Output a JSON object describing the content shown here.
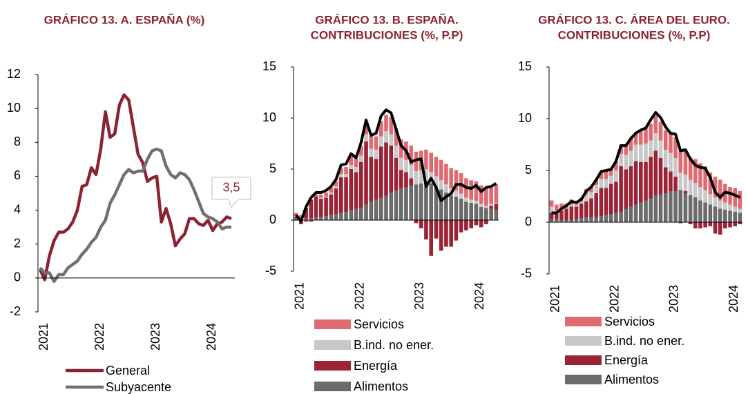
{
  "chart_data": [
    {
      "type": "line",
      "title": [
        "GRÁFICO 13. A.  ESPAÑA (%)"
      ],
      "categories": [
        "2021",
        null,
        null,
        null,
        null,
        null,
        null,
        null,
        null,
        null,
        null,
        null,
        "2022",
        null,
        null,
        null,
        null,
        null,
        null,
        null,
        null,
        null,
        null,
        null,
        "2023",
        null,
        null,
        null,
        null,
        null,
        null,
        null,
        null,
        null,
        null,
        null,
        "2024",
        null,
        null,
        null,
        null,
        null
      ],
      "series": [
        {
          "name": "General",
          "color": "#8b2332",
          "values": [
            0.5,
            -0.1,
            1.3,
            2.2,
            2.7,
            2.7,
            2.9,
            3.3,
            4.0,
            5.4,
            5.5,
            6.5,
            6.1,
            7.6,
            9.8,
            8.3,
            8.5,
            10.2,
            10.8,
            10.5,
            8.9,
            7.3,
            6.8,
            5.7,
            5.9,
            6.0,
            3.3,
            4.1,
            3.2,
            1.9,
            2.3,
            2.6,
            3.5,
            3.5,
            3.2,
            3.1,
            3.4,
            2.8,
            3.2,
            3.3,
            3.6,
            3.5
          ]
        },
        {
          "name": "Subyacente",
          "color": "#707070",
          "values": [
            0.6,
            0.3,
            0.3,
            -0.2,
            0.2,
            0.2,
            0.6,
            0.8,
            1.0,
            1.4,
            1.7,
            2.1,
            2.4,
            3.0,
            3.4,
            4.4,
            4.9,
            5.5,
            6.1,
            6.4,
            6.2,
            6.3,
            6.3,
            7.0,
            7.5,
            7.6,
            7.5,
            6.6,
            6.1,
            5.9,
            6.2,
            6.1,
            5.8,
            5.2,
            4.5,
            3.8,
            3.6,
            3.5,
            3.3,
            2.9,
            3.0,
            3.0
          ]
        }
      ],
      "annotation": "3,5",
      "ylim": [
        -2,
        12
      ],
      "yticks": [
        -2,
        0,
        2,
        4,
        6,
        8,
        10,
        12
      ]
    },
    {
      "type": "stacked_bar",
      "title": [
        "GRÁFICO 13. B.  ESPAÑA.",
        "CONTRIBUCIONES (%, P.P)"
      ],
      "categories": [
        "2021",
        null,
        null,
        null,
        null,
        null,
        null,
        null,
        null,
        null,
        null,
        null,
        "2022",
        null,
        null,
        null,
        null,
        null,
        null,
        null,
        null,
        null,
        null,
        null,
        "2023",
        null,
        null,
        null,
        null,
        null,
        null,
        null,
        null,
        null,
        null,
        null,
        "2024",
        null,
        null,
        null,
        null
      ],
      "series": [
        {
          "name": "Servicios",
          "color": "#e06a72",
          "values": [
            0.3,
            0.2,
            -0.2,
            -0.2,
            0.2,
            0.3,
            0.4,
            0.5,
            0.5,
            0.6,
            0.7,
            0.8,
            0.8,
            1.0,
            1.1,
            1.2,
            1.3,
            1.5,
            1.6,
            1.7,
            1.7,
            1.8,
            1.8,
            1.9,
            1.9,
            1.9,
            1.9,
            1.9,
            1.9,
            2.0,
            2.0,
            2.0,
            2.0,
            2.0,
            1.9,
            1.9,
            1.9,
            1.8,
            1.8,
            1.8,
            1.8
          ]
        },
        {
          "name": "B.ind. no ener.",
          "color": "#c8c8c8",
          "values": [
            0.1,
            0.1,
            0.0,
            0.0,
            0.0,
            0.1,
            0.1,
            0.2,
            0.2,
            0.3,
            0.3,
            0.4,
            0.5,
            0.6,
            0.7,
            0.8,
            0.9,
            1.0,
            1.1,
            1.1,
            1.2,
            1.2,
            1.2,
            1.3,
            1.3,
            1.3,
            1.2,
            1.1,
            1.0,
            0.9,
            0.8,
            0.7,
            0.6,
            0.5,
            0.4,
            0.3,
            0.3,
            0.3,
            0.2,
            0.2,
            0.1
          ]
        },
        {
          "name": "Energía",
          "color": "#9b2335",
          "values": [
            0.1,
            -0.4,
            1.0,
            1.8,
            2.0,
            1.8,
            1.8,
            2.0,
            2.5,
            3.5,
            3.4,
            4.0,
            3.6,
            4.5,
            6.2,
            4.4,
            4.0,
            5.0,
            5.2,
            4.6,
            3.2,
            1.8,
            1.5,
            0.7,
            -0.3,
            -0.8,
            -1.9,
            -3.5,
            -1.8,
            -3.0,
            -2.6,
            -2.6,
            -2.0,
            -1.2,
            -1.0,
            -0.8,
            -0.5,
            -0.7,
            -0.4,
            0.3,
            0.6
          ]
        },
        {
          "name": "Alimentos",
          "color": "#6b6b6b",
          "values": [
            0.2,
            0.2,
            0.2,
            0.2,
            0.3,
            0.3,
            0.4,
            0.5,
            0.6,
            0.7,
            0.8,
            1.0,
            1.1,
            1.2,
            1.5,
            1.8,
            2.0,
            2.2,
            2.4,
            2.7,
            2.9,
            3.1,
            3.2,
            3.4,
            3.5,
            3.6,
            3.8,
            3.6,
            3.3,
            3.0,
            2.7,
            2.4,
            2.3,
            2.1,
            1.8,
            1.7,
            1.6,
            1.3,
            1.2,
            1.1,
            1.0
          ]
        }
      ],
      "line": {
        "color": "#000000",
        "values": [
          0.5,
          -0.1,
          1.3,
          2.2,
          2.7,
          2.7,
          2.9,
          3.3,
          4.0,
          5.4,
          5.5,
          6.5,
          6.1,
          7.6,
          9.8,
          8.3,
          8.5,
          10.2,
          10.8,
          10.5,
          8.9,
          7.3,
          6.8,
          5.7,
          5.9,
          6.0,
          3.3,
          4.1,
          3.2,
          1.9,
          2.3,
          2.6,
          3.5,
          3.5,
          3.2,
          3.1,
          3.4,
          2.8,
          3.2,
          3.3,
          3.6
        ]
      },
      "ylim": [
        -5,
        15
      ],
      "yticks": [
        -5,
        0,
        5,
        10,
        15
      ]
    },
    {
      "type": "stacked_bar",
      "title": [
        "GRÁFICO 13. C. ÁREA DEL EURO.",
        "CONTRIBUCIONES (%, P.P)"
      ],
      "categories": [
        "2021",
        null,
        null,
        null,
        null,
        null,
        null,
        null,
        null,
        null,
        null,
        null,
        "2022",
        null,
        null,
        null,
        null,
        null,
        null,
        null,
        null,
        null,
        null,
        null,
        "2023",
        null,
        null,
        null,
        null,
        null,
        null,
        null,
        null,
        null,
        null,
        null,
        "2024",
        null,
        null
      ],
      "series": [
        {
          "name": "Servicios",
          "color": "#e06a72",
          "values": [
            0.6,
            0.6,
            0.6,
            0.4,
            0.5,
            0.3,
            0.4,
            0.5,
            0.5,
            0.5,
            0.7,
            0.8,
            0.6,
            0.9,
            0.9,
            1.0,
            1.2,
            1.2,
            1.4,
            1.5,
            1.6,
            1.7,
            1.8,
            1.9,
            1.9,
            2.0,
            2.1,
            2.4,
            2.2,
            2.3,
            2.3,
            2.3,
            2.1,
            2.0,
            2.0,
            1.8,
            1.7,
            1.8,
            1.7
          ]
        },
        {
          "name": "B.ind. no ener.",
          "color": "#c8c8c8",
          "values": [
            0.6,
            0.3,
            0.1,
            0.1,
            0.2,
            0.2,
            0.2,
            0.7,
            0.6,
            0.8,
            0.9,
            0.9,
            0.8,
            1.1,
            1.2,
            1.4,
            1.5,
            1.6,
            1.7,
            1.8,
            1.6,
            1.7,
            1.7,
            1.7,
            1.8,
            1.8,
            1.7,
            1.6,
            1.5,
            1.4,
            1.3,
            1.2,
            1.0,
            0.9,
            0.8,
            0.7,
            0.6,
            0.5,
            0.4
          ]
        },
        {
          "name": "Energía",
          "color": "#9b2335",
          "values": [
            0.6,
            0.5,
            0.9,
            1.1,
            1.3,
            1.2,
            1.4,
            1.5,
            1.8,
            2.3,
            2.7,
            2.6,
            2.9,
            3.0,
            4.4,
            3.8,
            3.9,
            4.2,
            3.9,
            3.7,
            4.0,
            4.3,
            3.5,
            2.5,
            1.9,
            1.4,
            -0.1,
            0.2,
            -0.2,
            -0.6,
            -0.6,
            -0.5,
            -0.4,
            -1.1,
            -1.2,
            -0.6,
            -0.5,
            -0.4,
            -0.2
          ]
        },
        {
          "name": "Alimentos",
          "color": "#6b6b6b",
          "values": [
            0.3,
            0.3,
            0.2,
            0.2,
            0.2,
            0.3,
            0.4,
            0.5,
            0.5,
            0.5,
            0.6,
            0.7,
            0.8,
            0.9,
            1.0,
            1.3,
            1.5,
            1.7,
            1.9,
            2.1,
            2.3,
            2.6,
            2.7,
            2.8,
            3.0,
            3.0,
            3.1,
            2.8,
            2.6,
            2.4,
            2.1,
            1.9,
            1.7,
            1.5,
            1.3,
            1.2,
            1.1,
            1.0,
            0.9
          ]
        }
      ],
      "line": {
        "color": "#000000",
        "values": [
          0.9,
          0.9,
          1.3,
          1.6,
          2.0,
          1.9,
          2.2,
          3.0,
          3.4,
          4.1,
          4.9,
          5.0,
          5.1,
          5.9,
          7.4,
          7.4,
          8.1,
          8.6,
          8.9,
          9.1,
          9.9,
          10.6,
          10.1,
          9.2,
          8.6,
          8.5,
          6.9,
          7.0,
          6.1,
          5.5,
          5.3,
          5.2,
          4.3,
          2.9,
          2.4,
          2.9,
          2.8,
          2.6,
          2.4
        ]
      },
      "ylim": [
        -5,
        15
      ],
      "yticks": [
        -5,
        0,
        5,
        10,
        15
      ]
    }
  ]
}
